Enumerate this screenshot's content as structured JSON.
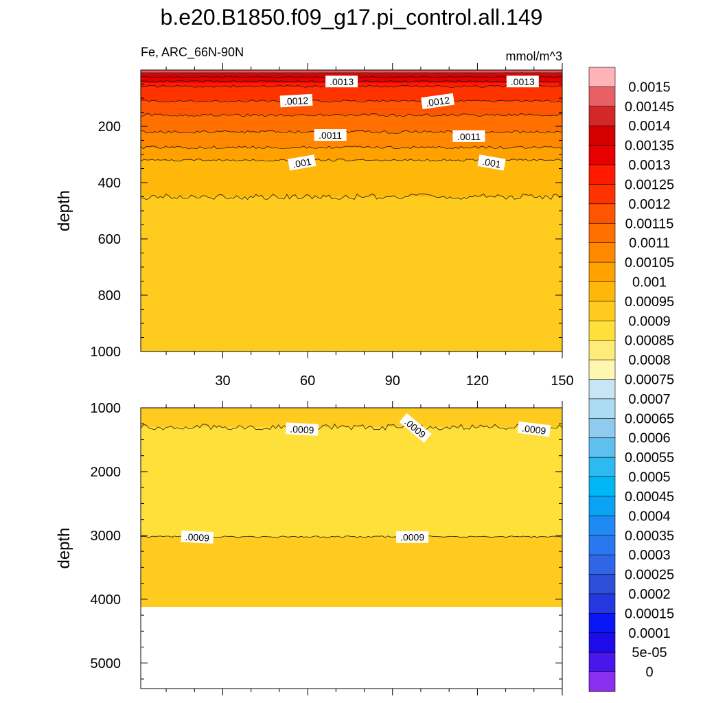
{
  "title": "b.e20.B1850.f09_g17.pi_control.all.149",
  "chart_data": {
    "type": "heatmap",
    "variable": "Fe, ARC_66N-90N",
    "units": "mmol/m^3",
    "x_ticks": [
      30,
      60,
      90,
      120,
      150
    ],
    "x_range": [
      1,
      150
    ],
    "panels": [
      {
        "name": "upper",
        "ylabel": "depth",
        "ylim": [
          0,
          1000
        ],
        "y_ticks": [
          200,
          400,
          600,
          800,
          1000
        ],
        "bands": [
          {
            "top": 0,
            "bottom": 7,
            "value": 0.00145
          },
          {
            "top": 7,
            "bottom": 15,
            "value": 0.0014
          },
          {
            "top": 15,
            "bottom": 25,
            "value": 0.00135
          },
          {
            "top": 25,
            "bottom": 45,
            "value": 0.0013
          },
          {
            "top": 45,
            "bottom": 58,
            "value": 0.00125
          },
          {
            "top": 58,
            "bottom": 110,
            "value": 0.0012
          },
          {
            "top": 110,
            "bottom": 160,
            "value": 0.00115
          },
          {
            "top": 160,
            "bottom": 220,
            "value": 0.0011
          },
          {
            "top": 220,
            "bottom": 275,
            "value": 0.00105
          },
          {
            "top": 275,
            "bottom": 320,
            "value": 0.001
          },
          {
            "top": 320,
            "bottom": 450,
            "value": 0.00095
          },
          {
            "top": 450,
            "bottom": 1000,
            "value": 0.0009
          }
        ],
        "contours": [
          {
            "depth": 12,
            "amp": 2
          },
          {
            "depth": 25,
            "amp": 2
          },
          {
            "depth": 40,
            "amp": 3
          },
          {
            "depth": 58,
            "amp": 4
          },
          {
            "depth": 110,
            "amp": 4
          },
          {
            "depth": 160,
            "amp": 5
          },
          {
            "depth": 220,
            "amp": 5
          },
          {
            "depth": 275,
            "amp": 5
          },
          {
            "depth": 320,
            "amp": 4
          },
          {
            "depth": 450,
            "amp": 10
          }
        ],
        "labels": [
          {
            "text": ".0013",
            "x": 72,
            "depth": 42,
            "angle": 0
          },
          {
            "text": ".0013",
            "x": 136,
            "depth": 42,
            "angle": 0
          },
          {
            "text": ".0012",
            "x": 56,
            "depth": 110,
            "angle": -3
          },
          {
            "text": ".0012",
            "x": 106,
            "depth": 112,
            "angle": -8
          },
          {
            "text": ".0011",
            "x": 68,
            "depth": 232,
            "angle": 0
          },
          {
            "text": ".0011",
            "x": 117,
            "depth": 236,
            "angle": 0
          },
          {
            "text": ".001",
            "x": 58,
            "depth": 330,
            "angle": -10
          },
          {
            "text": ".001",
            "x": 125,
            "depth": 330,
            "angle": 10
          }
        ]
      },
      {
        "name": "lower",
        "ylabel": "depth",
        "ylim": [
          1000,
          5400
        ],
        "y_ticks": [
          1000,
          2000,
          3000,
          4000,
          5000
        ],
        "bottom_of_data": 4120,
        "bands": [
          {
            "top": 1000,
            "bottom": 1300,
            "value": 0.0009
          },
          {
            "top": 1300,
            "bottom": 3020,
            "value": 0.00085
          },
          {
            "top": 3020,
            "bottom": 4120,
            "value": 0.0009
          }
        ],
        "contours": [
          {
            "depth": 1300,
            "amp": 45
          },
          {
            "depth": 3020,
            "amp": 12
          }
        ],
        "labels": [
          {
            "text": ".0009",
            "x": 58,
            "depth": 1340,
            "angle": 3
          },
          {
            "text": ".0009",
            "x": 98,
            "depth": 1320,
            "angle": 40
          },
          {
            "text": ".0009",
            "x": 140,
            "depth": 1340,
            "angle": 7
          },
          {
            "text": ".0009",
            "x": 21,
            "depth": 3030,
            "angle": 3
          },
          {
            "text": ".0009",
            "x": 97,
            "depth": 3030,
            "angle": 0
          }
        ]
      }
    ],
    "colorbar": {
      "labels": [
        "0.0015",
        "0.00145",
        "0.0014",
        "0.00135",
        "0.0013",
        "0.00125",
        "0.0012",
        "0.00115",
        "0.0011",
        "0.00105",
        "0.001",
        "0.00095",
        "0.0009",
        "0.00085",
        "0.0008",
        "0.00075",
        "0.0007",
        "0.00065",
        "0.0006",
        "0.00055",
        "0.0005",
        "0.00045",
        "0.0004",
        "0.00035",
        "0.0003",
        "0.00025",
        "0.0002",
        "0.00015",
        "0.0001",
        "5e-05",
        "0"
      ],
      "colors": [
        "#ffb3b8",
        "#e86064",
        "#d42828",
        "#d50000",
        "#e80000",
        "#ff1a00",
        "#ff3300",
        "#ff5500",
        "#ff7000",
        "#ff8800",
        "#ffa200",
        "#ffb70a",
        "#ffcb1f",
        "#ffdf3a",
        "#ffec78",
        "#fff7b0",
        "#c7e6f5",
        "#acdcf2",
        "#8ecbee",
        "#5ec0ee",
        "#2cbaf0",
        "#00b6f5",
        "#0aa2f5",
        "#1e8bf5",
        "#2a78f0",
        "#3065e6",
        "#2d4fd8",
        "#2538e0",
        "#0a16f5",
        "#1d0cea",
        "#4b16ee",
        "#8a2ef0"
      ]
    }
  }
}
